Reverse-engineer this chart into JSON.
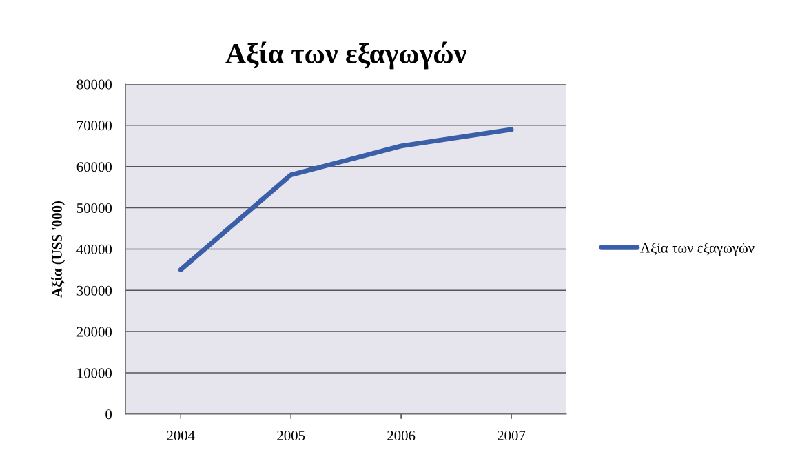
{
  "chart_data": {
    "type": "line",
    "title": "Αξία των εξαγωγών",
    "ylabel": "Αξία (US$ '000)",
    "categories": [
      "2004",
      "2005",
      "2006",
      "2007"
    ],
    "series": [
      {
        "name": "Αξία των εξαγωγών",
        "color": "#3a5ea8",
        "values": [
          35000,
          58000,
          65000,
          69000
        ]
      }
    ],
    "ylim": [
      0,
      80000
    ],
    "yticks": [
      0,
      10000,
      20000,
      30000,
      40000,
      50000,
      60000,
      70000,
      80000
    ],
    "grid": "y",
    "legend": "right",
    "marker": "none",
    "line_style": "solid"
  }
}
